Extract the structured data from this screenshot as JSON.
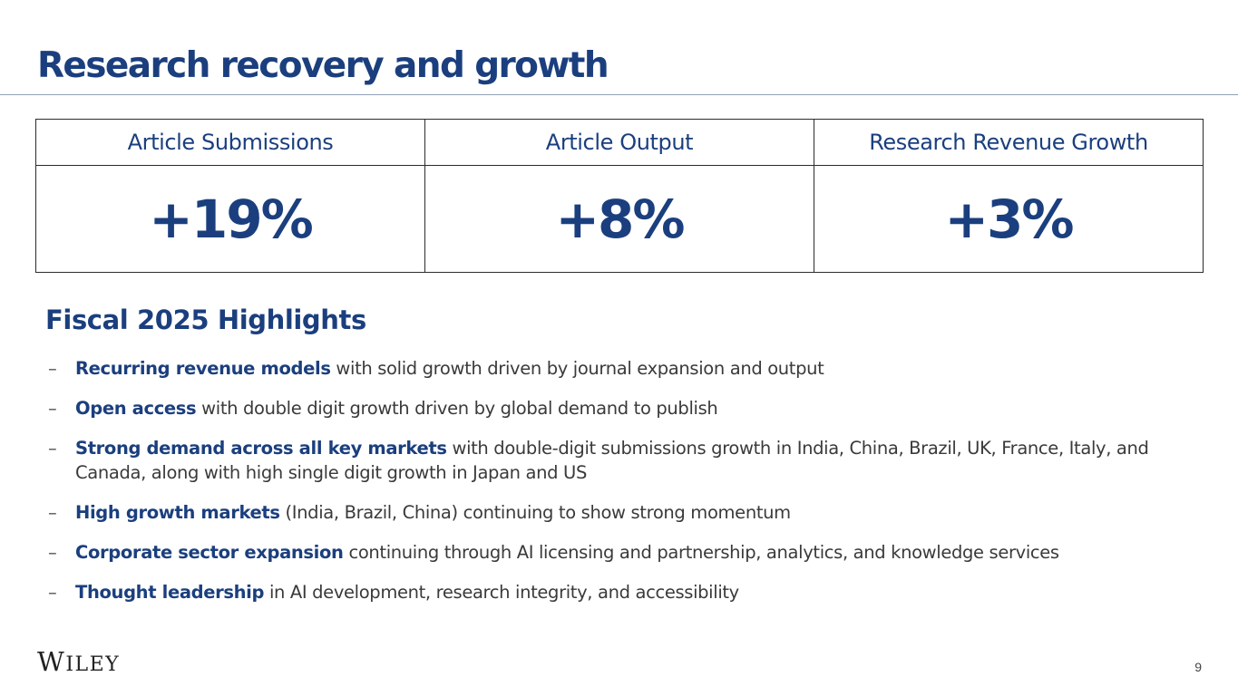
{
  "slide": {
    "title": "Research recovery and growth",
    "page_number": "9"
  },
  "metrics": [
    {
      "label": "Article Submissions",
      "value": "+19%"
    },
    {
      "label": "Article Output",
      "value": "+8%"
    },
    {
      "label": "Research Revenue Growth",
      "value": "+3%"
    }
  ],
  "highlights": {
    "heading": "Fiscal 2025 Highlights",
    "bullet_marker": "–",
    "items": [
      {
        "bold": "Recurring revenue models",
        "text": " with solid growth driven by journal expansion and output"
      },
      {
        "bold": "Open access",
        "text": " with double digit growth driven by global demand to publish"
      },
      {
        "bold": "Strong demand across all key markets",
        "text": " with double-digit submissions growth in India, China, Brazil, UK, France, Italy, and Canada, along with high single digit growth in Japan and US"
      },
      {
        "bold": "High growth markets",
        "text": " (India, Brazil, China) continuing to show strong momentum"
      },
      {
        "bold": "Corporate sector expansion",
        "text": " continuing through AI licensing and partnership, analytics, and knowledge services"
      },
      {
        "bold": "Thought leadership",
        "text": " in AI development, research integrity, and accessibility"
      }
    ]
  },
  "footer": {
    "logo_text": "WILEY",
    "logo_first": "W",
    "logo_rest": "ILEY"
  },
  "colors": {
    "brand_blue": "#1b3f7e",
    "body_text": "#3a3a3a"
  }
}
